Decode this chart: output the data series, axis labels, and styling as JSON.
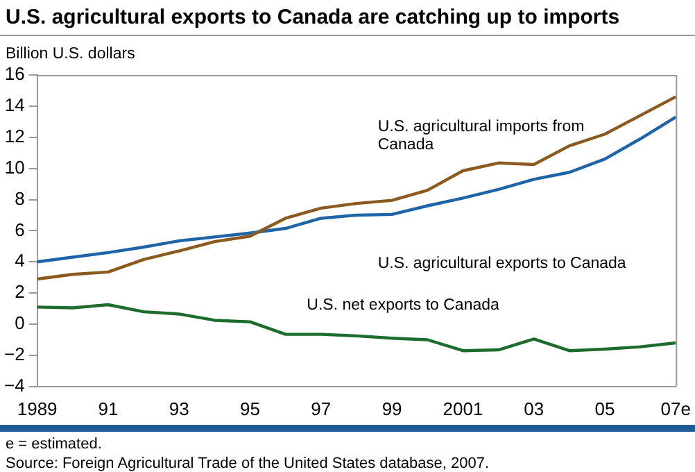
{
  "chart_data": {
    "type": "line",
    "title": "U.S. agricultural exports to Canada are catching up to imports",
    "ylabel": "Billion U.S. dollars",
    "categories": [
      "1989",
      null,
      "91",
      null,
      "93",
      null,
      "95",
      null,
      "97",
      null,
      "99",
      null,
      "2001",
      null,
      "03",
      null,
      "05",
      null,
      "07e"
    ],
    "series": [
      {
        "name": "U.S. agricultural imports from Canada",
        "color": "#8b5a1e",
        "values": [
          2.9,
          3.2,
          3.35,
          4.15,
          4.7,
          5.3,
          5.65,
          6.8,
          7.45,
          7.75,
          7.95,
          8.6,
          9.85,
          10.35,
          10.25,
          11.45,
          12.2,
          13.4,
          14.6
        ]
      },
      {
        "name": "U.S. agricultural exports to Canada",
        "color": "#1f63a8",
        "values": [
          4.0,
          4.3,
          4.6,
          4.95,
          5.35,
          5.6,
          5.85,
          6.15,
          6.8,
          7.0,
          7.05,
          7.6,
          8.1,
          8.65,
          9.3,
          9.75,
          10.6,
          11.9,
          13.3
        ]
      },
      {
        "name": "U.S. net exports to Canada",
        "color": "#1e6b2e",
        "values": [
          1.1,
          1.05,
          1.25,
          0.8,
          0.65,
          0.25,
          0.15,
          -0.65,
          -0.65,
          -0.75,
          -0.9,
          -1.0,
          -1.7,
          -1.65,
          -0.95,
          -1.7,
          -1.6,
          -1.45,
          -1.2
        ]
      }
    ],
    "ylim": [
      -4,
      16
    ],
    "yticks": [
      -4,
      -2,
      0,
      2,
      4,
      6,
      8,
      10,
      12,
      14,
      16
    ],
    "grid": false,
    "legend": false,
    "marker": "none",
    "line_style": "solid",
    "annotations": [
      "e = estimated.",
      "Source: Foreign Agricultural Trade of the United States database, 2007."
    ]
  }
}
